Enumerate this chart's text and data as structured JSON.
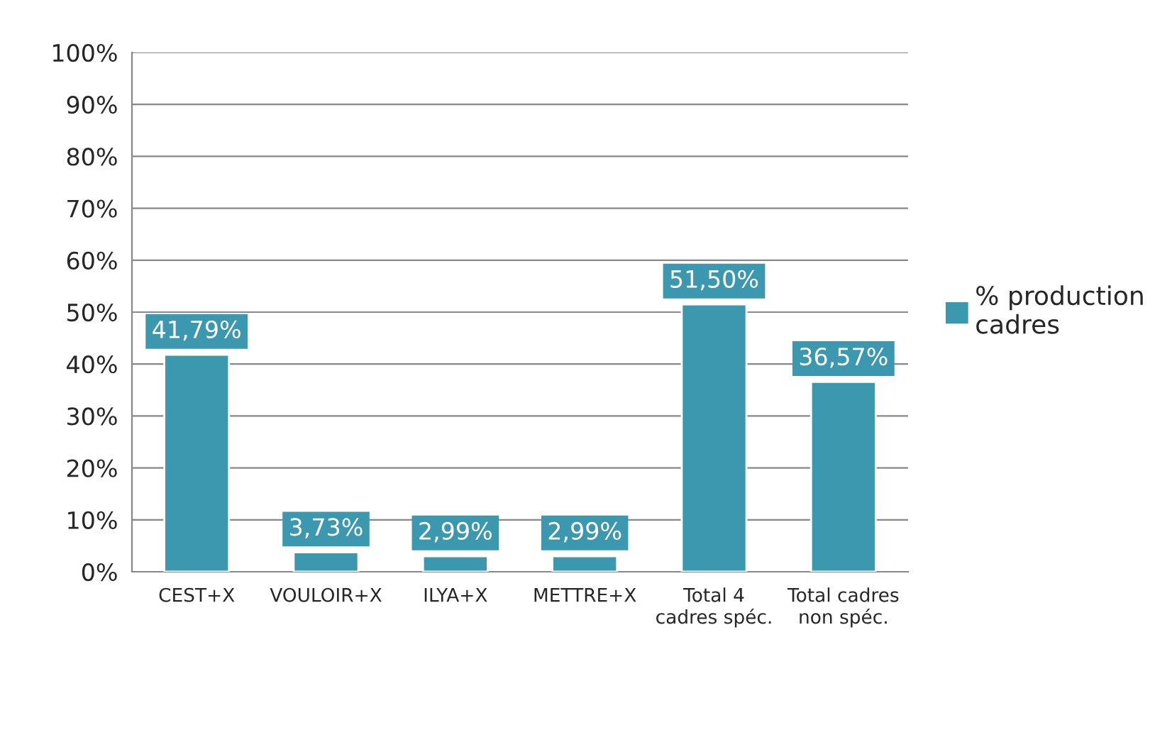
{
  "chart_data": {
    "type": "bar",
    "categories": [
      "CEST+X",
      "VOULOIR+X",
      "ILYA+X",
      "METTRE+X",
      "Total 4\ncadres spéc.",
      "Total cadres\nnon spéc."
    ],
    "series": [
      {
        "name": "% production\ncadres",
        "color": "#3c98ae",
        "values": [
          41.79,
          3.73,
          2.99,
          2.99,
          51.5,
          36.57
        ],
        "value_labels": [
          "41,79%",
          "3,73%",
          "2,99%",
          "2,99%",
          "51,50%",
          "36,57%"
        ]
      }
    ],
    "ylim": [
      0,
      100
    ],
    "yticks": [
      {
        "value": 0,
        "label": "0%"
      },
      {
        "value": 10,
        "label": "10%"
      },
      {
        "value": 20,
        "label": "20%"
      },
      {
        "value": 30,
        "label": "30%"
      },
      {
        "value": 40,
        "label": "40%"
      },
      {
        "value": 50,
        "label": "50%"
      },
      {
        "value": 60,
        "label": "60%"
      },
      {
        "value": 70,
        "label": "70%"
      },
      {
        "value": 80,
        "label": "80%"
      },
      {
        "value": 90,
        "label": "90%"
      },
      {
        "value": 100,
        "label": "100%"
      }
    ],
    "grid": "y",
    "legend": "right"
  }
}
